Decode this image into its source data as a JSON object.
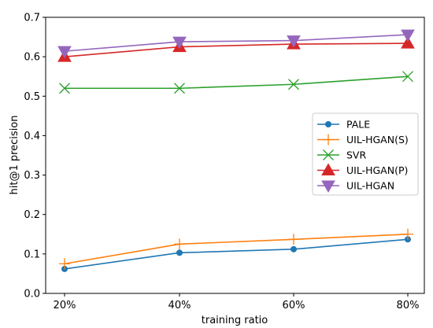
{
  "chart_data": {
    "type": "line",
    "xlabel": "training ratio",
    "ylabel": "hit@1 precision",
    "categories": [
      "20%",
      "40%",
      "60%",
      "80%"
    ],
    "ylim": [
      0.0,
      0.7
    ],
    "yticks": [
      "0.0",
      "0.1",
      "0.2",
      "0.3",
      "0.4",
      "0.5",
      "0.6",
      "0.7"
    ],
    "grid": false,
    "legend_position": "center-right",
    "series": [
      {
        "name": "PALE",
        "values": [
          0.062,
          0.103,
          0.112,
          0.137
        ],
        "color": "#1f77b4",
        "marker": "circle"
      },
      {
        "name": "UIL-HGAN(S)",
        "values": [
          0.075,
          0.125,
          0.137,
          0.15
        ],
        "color": "#ff7f0e",
        "marker": "plus"
      },
      {
        "name": "SVR",
        "values": [
          0.52,
          0.52,
          0.53,
          0.55
        ],
        "color": "#2ca02c",
        "marker": "x"
      },
      {
        "name": "UIL-HGAN(P)",
        "values": [
          0.6,
          0.625,
          0.632,
          0.634
        ],
        "color": "#d62728",
        "marker": "triangle-up"
      },
      {
        "name": "UIL-HGAN",
        "values": [
          0.614,
          0.638,
          0.641,
          0.656
        ],
        "color": "#9467bd",
        "marker": "triangle-down"
      }
    ]
  }
}
